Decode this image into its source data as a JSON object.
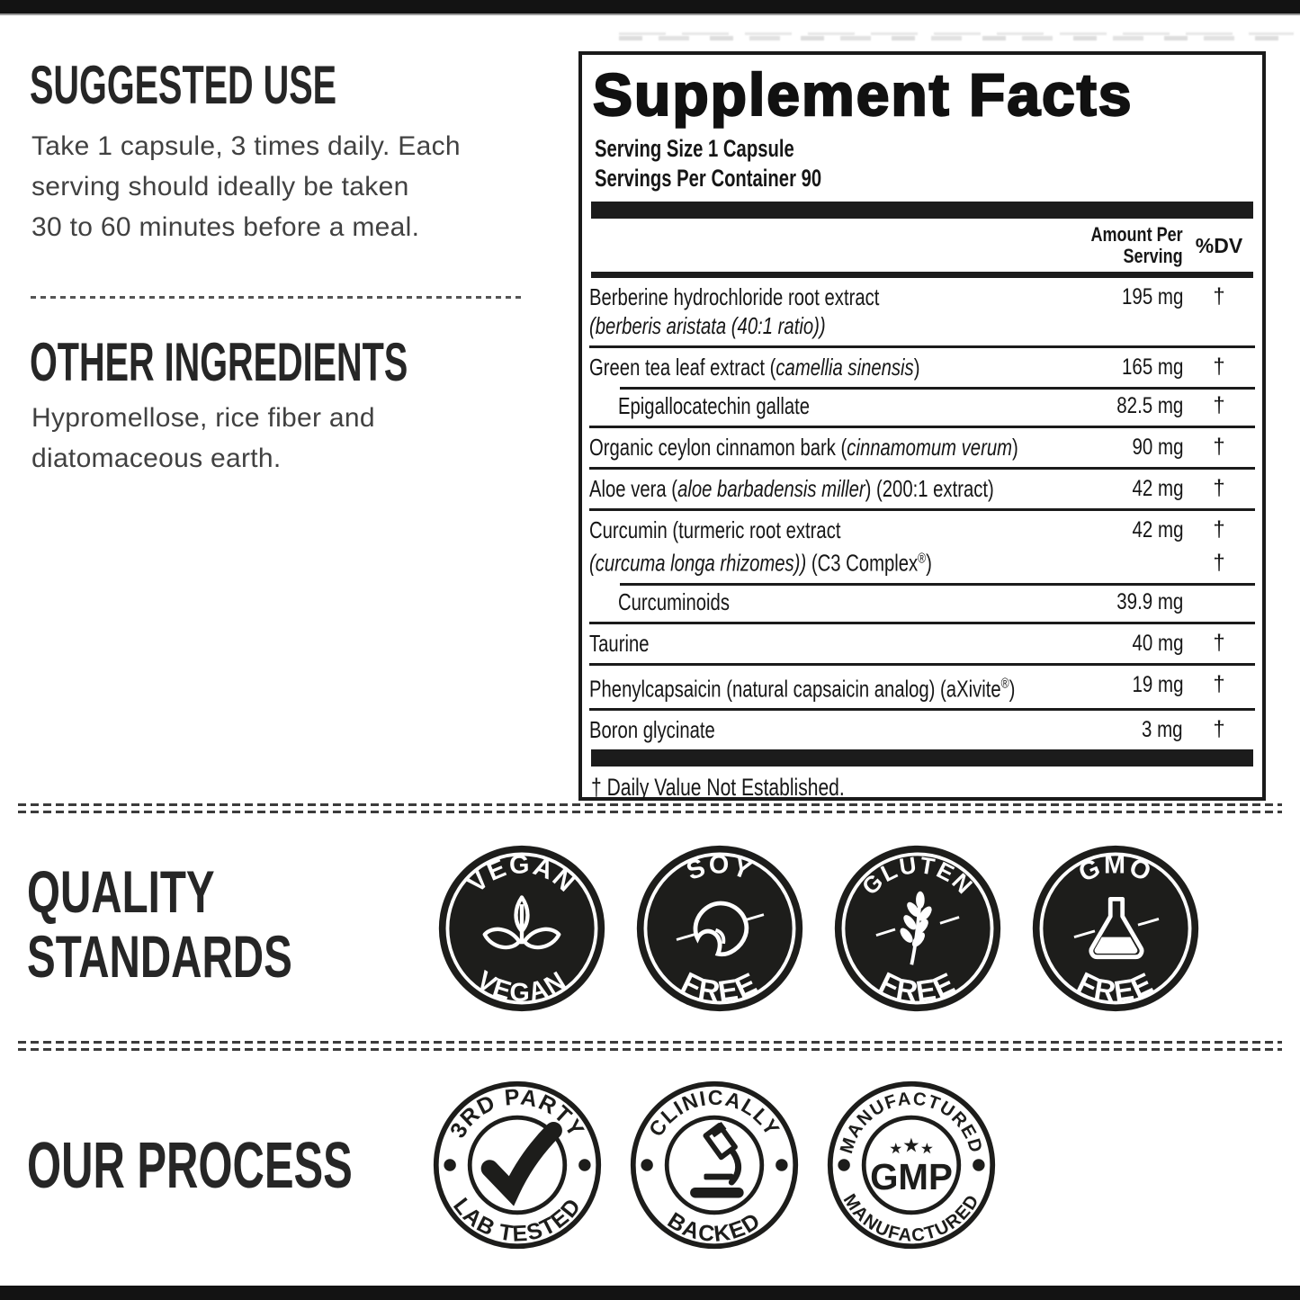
{
  "suggested_use": {
    "title": "SUGGESTED USE",
    "body_lines": [
      "Take 1 capsule, 3 times daily. Each",
      "serving should ideally be taken",
      "30 to 60 minutes before a meal."
    ]
  },
  "other_ingredients": {
    "title": "OTHER INGREDIENTS",
    "body_lines": [
      "Hypromellose, rice fiber and",
      "diatomaceous earth."
    ]
  },
  "supplement_facts": {
    "title": "Supplement Facts",
    "serving_size": "Serving Size 1 Capsule",
    "servings_per_container": "Servings Per Container 90",
    "col_amount_line1": "Amount Per",
    "col_amount_line2": "Serving",
    "col_dv": "%DV",
    "footnote": "† Daily Value Not Established.",
    "rows": [
      {
        "sep": "none",
        "lines": [
          [
            {
              "t": "Berberine hydrochloride root extract"
            }
          ],
          [
            {
              "t": "(",
              "i": true
            },
            {
              "t": "berberis aristata",
              "i": true
            },
            {
              "t": " (40:1 ratio))",
              "i": true
            }
          ]
        ],
        "amount": "195 mg",
        "dv": "†"
      },
      {
        "sep": "full",
        "lines": [
          [
            {
              "t": "Green tea leaf extract ("
            },
            {
              "t": "camellia sinensis",
              "i": true
            },
            {
              "t": ")"
            }
          ]
        ],
        "amount": "165 mg",
        "dv": "†"
      },
      {
        "sep": "inset",
        "indent": true,
        "lines": [
          [
            {
              "t": "Epigallocatechin gallate"
            }
          ]
        ],
        "amount": "82.5 mg",
        "dv": "†"
      },
      {
        "sep": "full",
        "lines": [
          [
            {
              "t": "Organic ceylon cinnamon bark ("
            },
            {
              "t": "cinnamomum verum",
              "i": true
            },
            {
              "t": ")"
            }
          ]
        ],
        "amount": "90 mg",
        "dv": "†"
      },
      {
        "sep": "full",
        "lines": [
          [
            {
              "t": "Aloe vera ("
            },
            {
              "t": "aloe barbadensis miller",
              "i": true
            },
            {
              "t": ") (200:1 extract)"
            }
          ]
        ],
        "amount": "42 mg",
        "dv": "†"
      },
      {
        "sep": "full",
        "lines": [
          [
            {
              "t": "Curcumin (turmeric root extract"
            }
          ],
          [
            {
              "t": "(",
              "i": true
            },
            {
              "t": "curcuma longa rhizomes",
              "i": true
            },
            {
              "t": "))",
              "i": true
            },
            {
              "t": " (C3 Complex"
            },
            {
              "t": "®",
              "sup": true
            },
            {
              "t": ")"
            }
          ]
        ],
        "amount": "42 mg",
        "dv": "†",
        "dv2": "†"
      },
      {
        "sep": "inset",
        "indent": true,
        "lines": [
          [
            {
              "t": "Curcuminoids"
            }
          ]
        ],
        "amount": "39.9 mg",
        "dv": ""
      },
      {
        "sep": "full",
        "lines": [
          [
            {
              "t": "Taurine"
            }
          ]
        ],
        "amount": "40 mg",
        "dv": "†"
      },
      {
        "sep": "full",
        "lines": [
          [
            {
              "t": "Phenylcapsaicin (natural capsaicin analog) (aXivite"
            },
            {
              "t": "®",
              "sup": true
            },
            {
              "t": ")"
            }
          ]
        ],
        "amount": "19 mg",
        "dv": "†"
      },
      {
        "sep": "full",
        "lines": [
          [
            {
              "t": "Boron glycinate"
            }
          ]
        ],
        "amount": "3 mg",
        "dv": "†"
      }
    ]
  },
  "quality_standards": {
    "title_line1": "QUALITY",
    "title_line2": "STANDARDS",
    "badges": [
      {
        "top": "VEGAN",
        "bottom": "VEGAN",
        "icon": "plant-icon"
      },
      {
        "top": "SOY",
        "bottom": "FREE",
        "icon": "bean-icon"
      },
      {
        "top": "GLUTEN",
        "bottom": "FREE",
        "icon": "wheat-icon"
      },
      {
        "top": "GMO",
        "bottom": "FREE",
        "icon": "flask-icon"
      }
    ]
  },
  "our_process": {
    "title": "OUR PROCESS",
    "badges": [
      {
        "top": "3RD PARTY",
        "bottom": "LAB TESTED",
        "icon": "checkmark-icon"
      },
      {
        "top": "CLINICALLY",
        "bottom": "BACKED",
        "icon": "microscope-icon"
      },
      {
        "top": "MANUFACTURED",
        "bottom": "MANUFACTURED",
        "center": "GMP",
        "icon": "gmp-stars-icon"
      }
    ]
  },
  "colors": {
    "ink": "#1d1d1b",
    "body_text": "#414141",
    "bar": "#131313"
  }
}
